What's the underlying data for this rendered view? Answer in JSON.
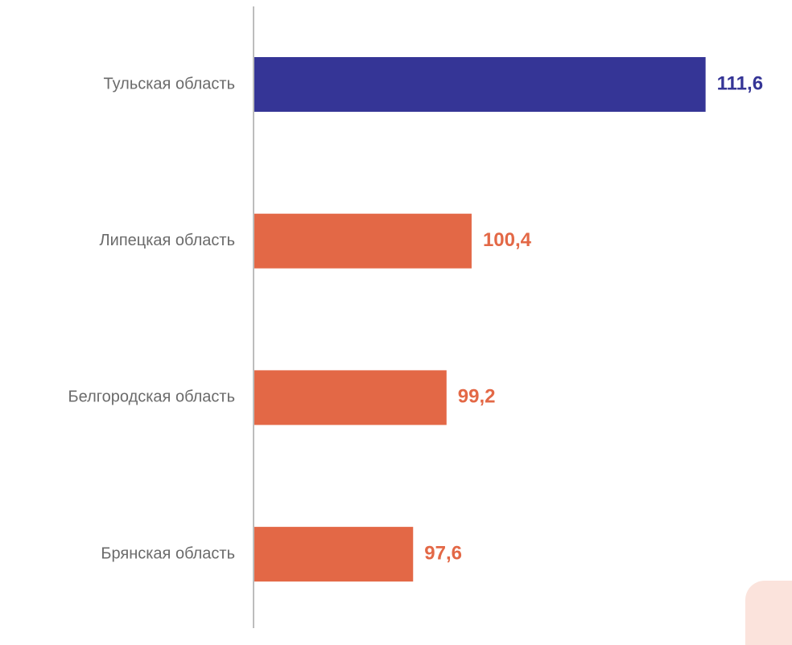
{
  "chart_data": {
    "type": "bar",
    "orientation": "horizontal",
    "categories": [
      "Тульская область",
      "Липецкая область",
      "Белгородская область",
      "Брянская область"
    ],
    "values": [
      111.6,
      100.4,
      99.2,
      97.6
    ],
    "value_labels": [
      "111,6",
      "100,4",
      "99,2",
      "97,6"
    ],
    "colors": [
      "#353596",
      "#e36846",
      "#e36846",
      "#e36846"
    ],
    "highlight_color": "#353596",
    "bar_color": "#e36846",
    "axis_color": "#bdbdbd",
    "title": "",
    "xlabel": "",
    "ylabel": "",
    "xlim": [
      90,
      112.5
    ],
    "grid": false,
    "legend": false
  }
}
